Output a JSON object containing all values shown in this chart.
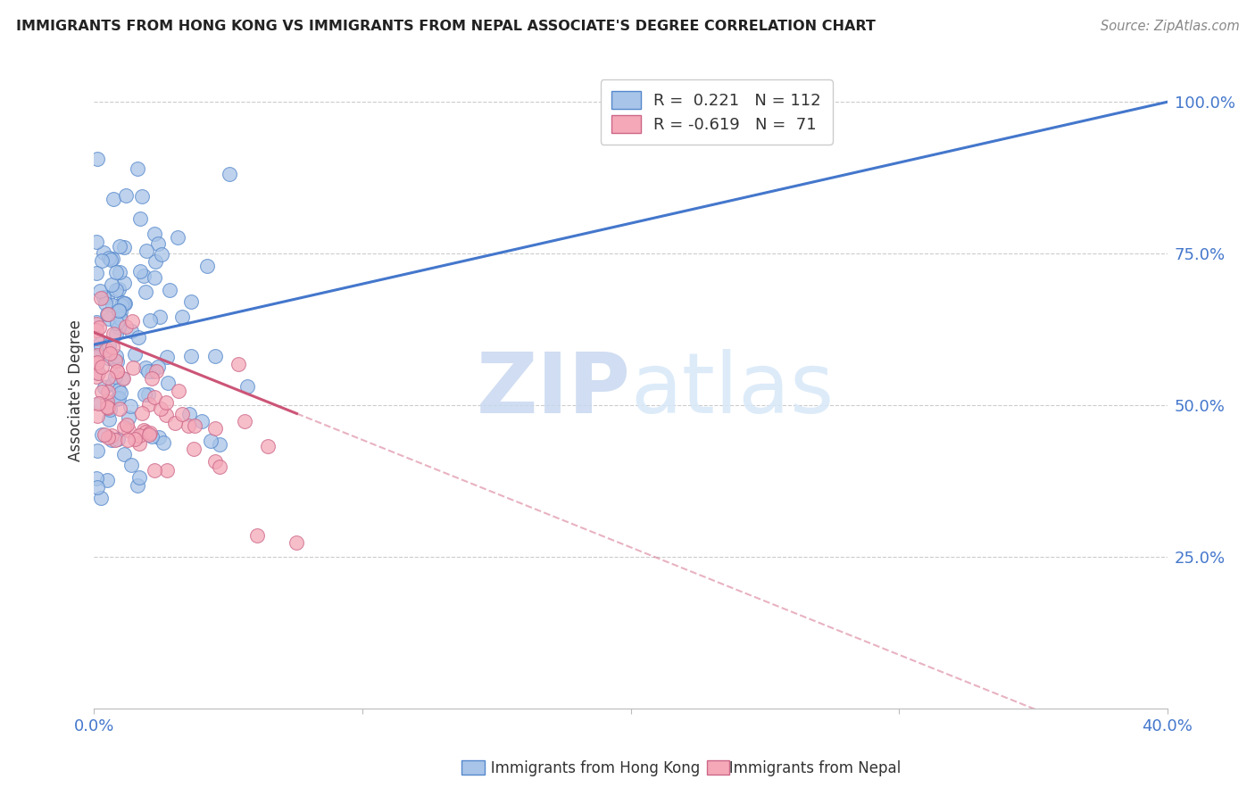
{
  "title": "IMMIGRANTS FROM HONG KONG VS IMMIGRANTS FROM NEPAL ASSOCIATE'S DEGREE CORRELATION CHART",
  "source": "Source: ZipAtlas.com",
  "ylabel": "Associate's Degree",
  "ytick_labels": [
    "25.0%",
    "50.0%",
    "75.0%",
    "100.0%"
  ],
  "xtick_labels": [
    "0.0%",
    "",
    "",
    "",
    "40.0%"
  ],
  "xlim": [
    0.0,
    0.4
  ],
  "ylim": [
    0.0,
    1.05
  ],
  "watermark_zip": "ZIP",
  "watermark_atlas": "atlas",
  "legend_hk_r": "0.221",
  "legend_hk_n": "112",
  "legend_nepal_r": "-0.619",
  "legend_nepal_n": "71",
  "hk_fill": "#A8C4E8",
  "hk_edge": "#5588CC",
  "nepal_fill": "#F4A8B8",
  "nepal_edge": "#CC6688",
  "line_hk": "#4477CC",
  "line_nepal": "#CC5577",
  "grid_color": "#CCCCCC",
  "right_axis_color": "#4477CC",
  "title_color": "#222222",
  "source_color": "#888888"
}
